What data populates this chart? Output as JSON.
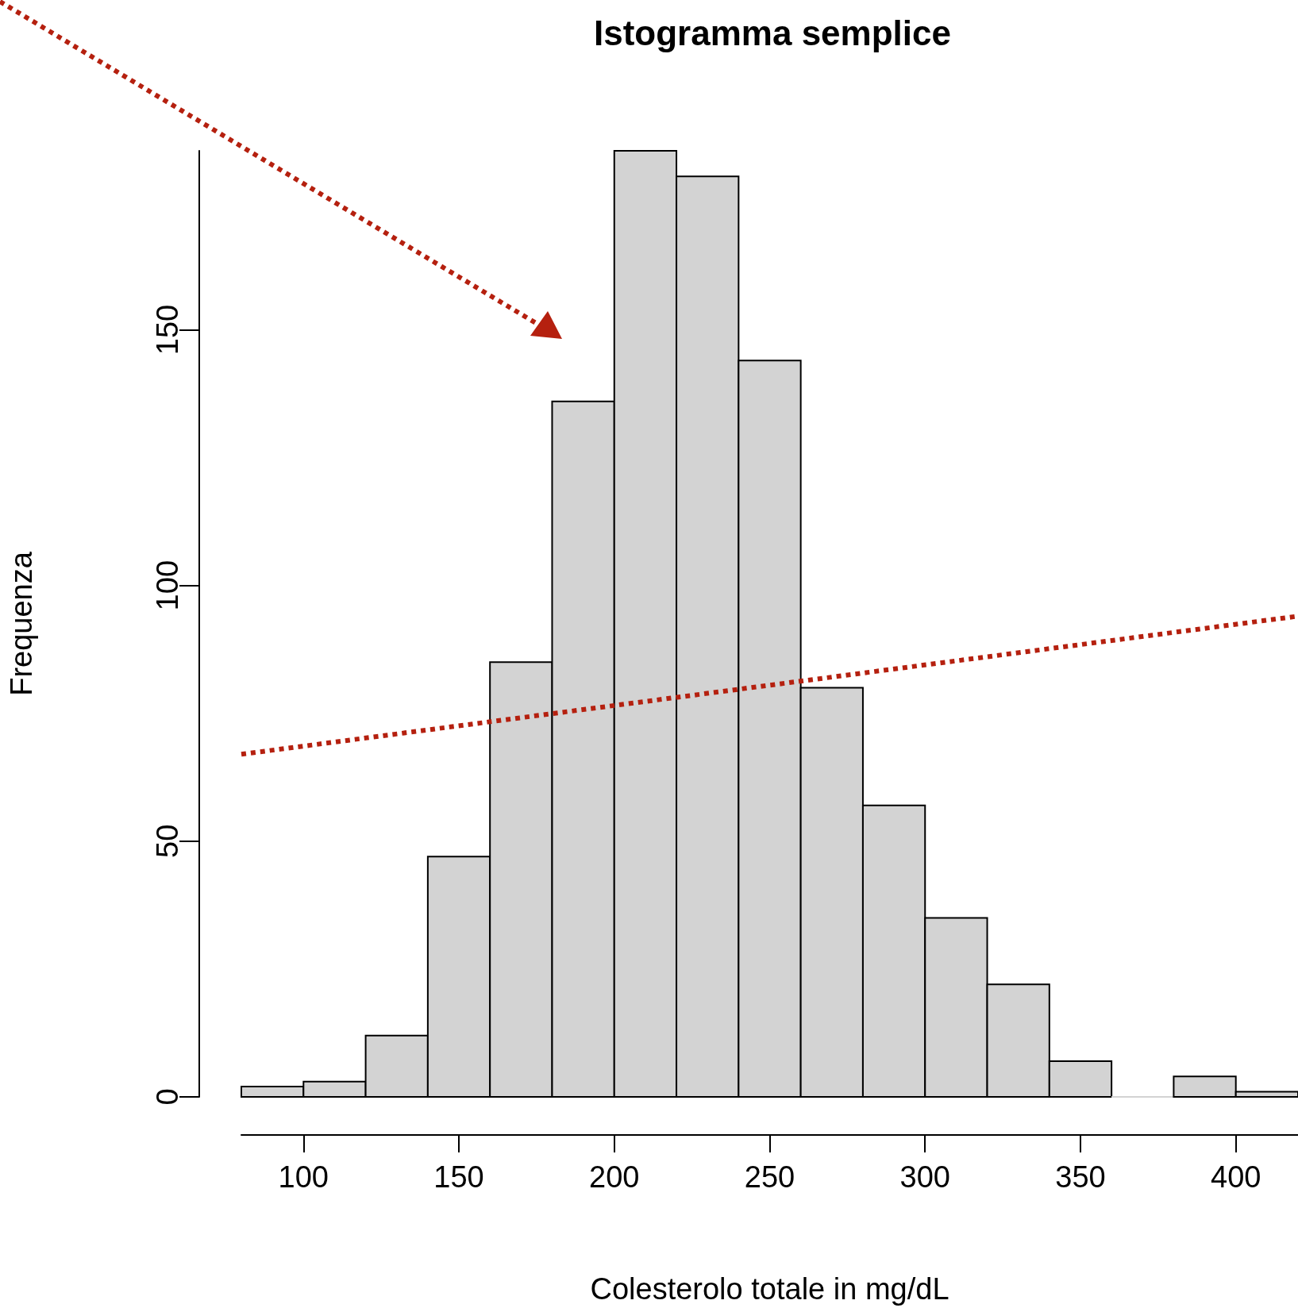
{
  "chart_data": {
    "type": "histogram",
    "title": "Istogramma semplice",
    "xlabel": "Colesterolo totale in mg/dL",
    "ylabel": "Frequenza",
    "bins": [
      80,
      100,
      120,
      140,
      160,
      180,
      200,
      220,
      240,
      260,
      280,
      300,
      320,
      340,
      360,
      380,
      400,
      420
    ],
    "values": [
      2,
      3,
      12,
      47,
      85,
      136,
      185,
      180,
      144,
      80,
      57,
      35,
      22,
      7,
      0,
      4,
      1
    ],
    "color": "#d3d3d3",
    "xlim": [
      80,
      420
    ],
    "xticks": [
      100,
      150,
      200,
      250,
      300,
      350,
      400
    ],
    "ylim": [
      0,
      185
    ],
    "yticks": [
      0,
      50,
      100,
      150
    ],
    "series": [
      {
        "type": "line",
        "x": [
          80,
          420
        ],
        "values": [
          67,
          94
        ],
        "color": "#b5200f",
        "line_style": "dotted",
        "marker": "none"
      }
    ]
  }
}
